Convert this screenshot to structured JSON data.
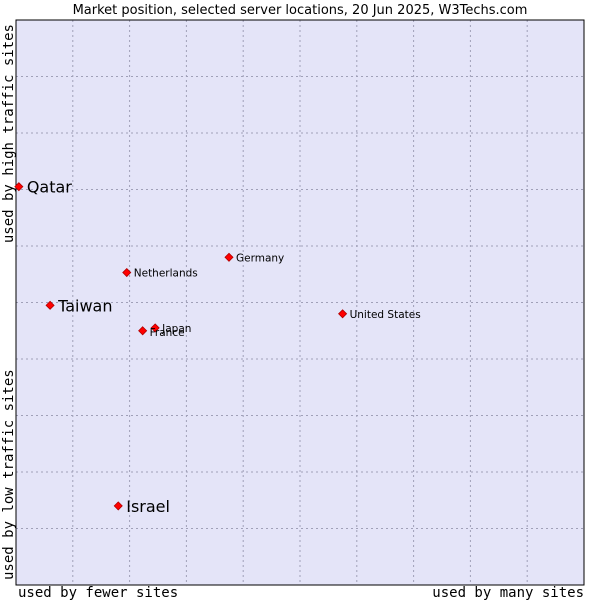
{
  "chart_data": {
    "type": "scatter",
    "title": "Market position, selected server locations, 20 Jun 2025, W3Techs.com",
    "xlabel_left": "used by fewer sites",
    "xlabel_right": "used by many sites",
    "ylabel_bottom": "used by low traffic sites",
    "ylabel_top": "used by high traffic sites",
    "xlim": [
      0,
      100
    ],
    "ylim": [
      0,
      100
    ],
    "grid": true,
    "colors": {
      "plot_background": "#e4e4f8",
      "grid": "#a0a0b8",
      "frame": "#000000",
      "marker": "#ff0000",
      "marker_edge": "#b00000"
    },
    "points": [
      {
        "name": "Qatar",
        "x": 0.5,
        "y": 70.5,
        "size": "large",
        "label_pos": "right"
      },
      {
        "name": "Taiwan",
        "x": 6.0,
        "y": 49.5,
        "size": "large",
        "label_pos": "right"
      },
      {
        "name": "Israel",
        "x": 18.0,
        "y": 14.0,
        "size": "large",
        "label_pos": "right"
      },
      {
        "name": "Germany",
        "x": 37.5,
        "y": 58.0,
        "size": "small",
        "label_pos": "right"
      },
      {
        "name": "Netherlands",
        "x": 19.5,
        "y": 55.3,
        "size": "small",
        "label_pos": "right"
      },
      {
        "name": "Japan",
        "x": 24.5,
        "y": 45.5,
        "size": "small",
        "label_pos": "right"
      },
      {
        "name": "France",
        "x": 22.3,
        "y": 45.0,
        "size": "small",
        "label_pos": "right-below"
      },
      {
        "name": "United States",
        "x": 57.5,
        "y": 48.0,
        "size": "small",
        "label_pos": "right"
      }
    ]
  }
}
